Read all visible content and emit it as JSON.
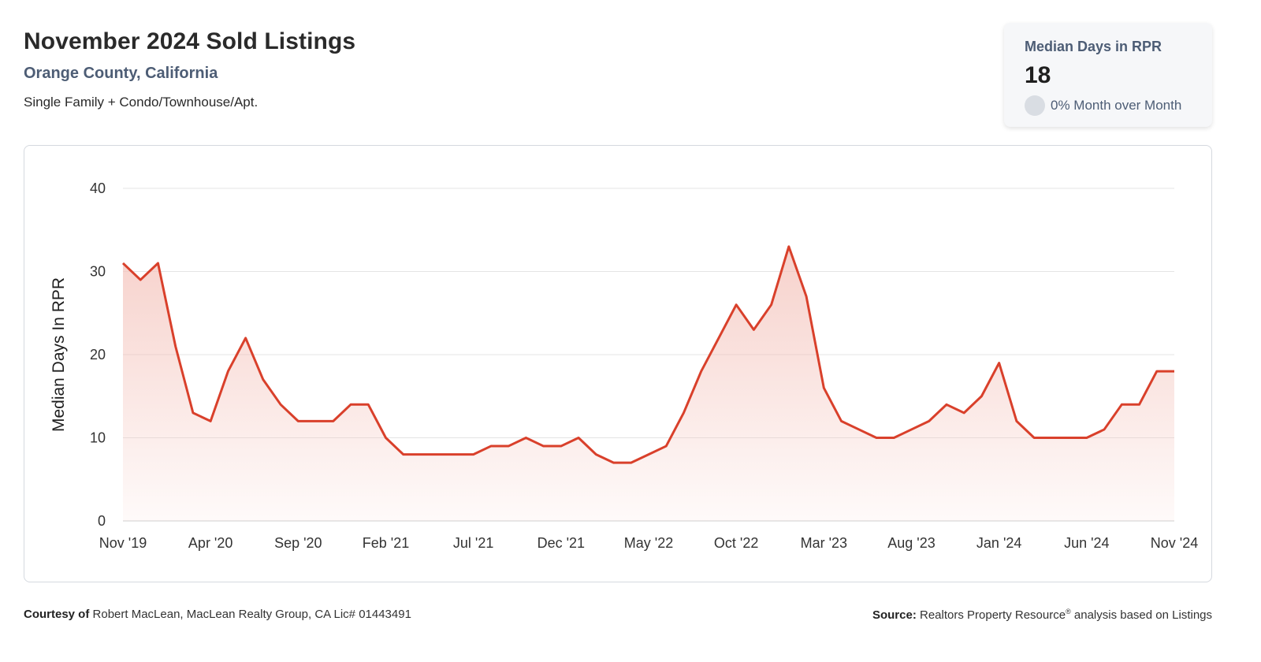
{
  "header": {
    "title": "November 2024 Sold Listings",
    "subtitle": "Orange County, California",
    "description": "Single Family + Condo/Townhouse/Apt."
  },
  "kpi": {
    "label": "Median Days in RPR",
    "value": "18",
    "change": "0% Month over Month"
  },
  "footer": {
    "courtesy_label": "Courtesy of",
    "courtesy_text": "Robert MacLean, MacLean Realty Group, CA Lic# 01443491",
    "source_label": "Source:",
    "source_text": "Realtors Property Resource",
    "source_mark": "®",
    "source_suffix": "analysis based on Listings"
  },
  "colors": {
    "line": "#d9402b",
    "fill_top": "#f4c2ba",
    "grid": "#e4e4e4"
  },
  "chart_data": {
    "type": "area",
    "ylabel": "Median Days In RPR",
    "ylim": [
      0,
      40
    ],
    "yticks": [
      0,
      10,
      20,
      30,
      40
    ],
    "xtick_labels": [
      "Nov '19",
      "Apr '20",
      "Sep '20",
      "Feb '21",
      "Jul '21",
      "Dec '21",
      "May '22",
      "Oct '22",
      "Mar '23",
      "Aug '23",
      "Jan '24",
      "Jun '24",
      "Nov '24"
    ],
    "grid": true,
    "series": [
      {
        "values": [
          31,
          29,
          31,
          21,
          13,
          12,
          18,
          22,
          17,
          14,
          12,
          12,
          12,
          14,
          14,
          10,
          8,
          8,
          8,
          8,
          8,
          9,
          9,
          10,
          9,
          9,
          10,
          8,
          7,
          7,
          8,
          9,
          13,
          18,
          22,
          26,
          23,
          26,
          33,
          27,
          16,
          12,
          11,
          10,
          10,
          11,
          12,
          14,
          13,
          15,
          19,
          12,
          10,
          10,
          10,
          10,
          11,
          14,
          14,
          18,
          18
        ]
      }
    ]
  }
}
